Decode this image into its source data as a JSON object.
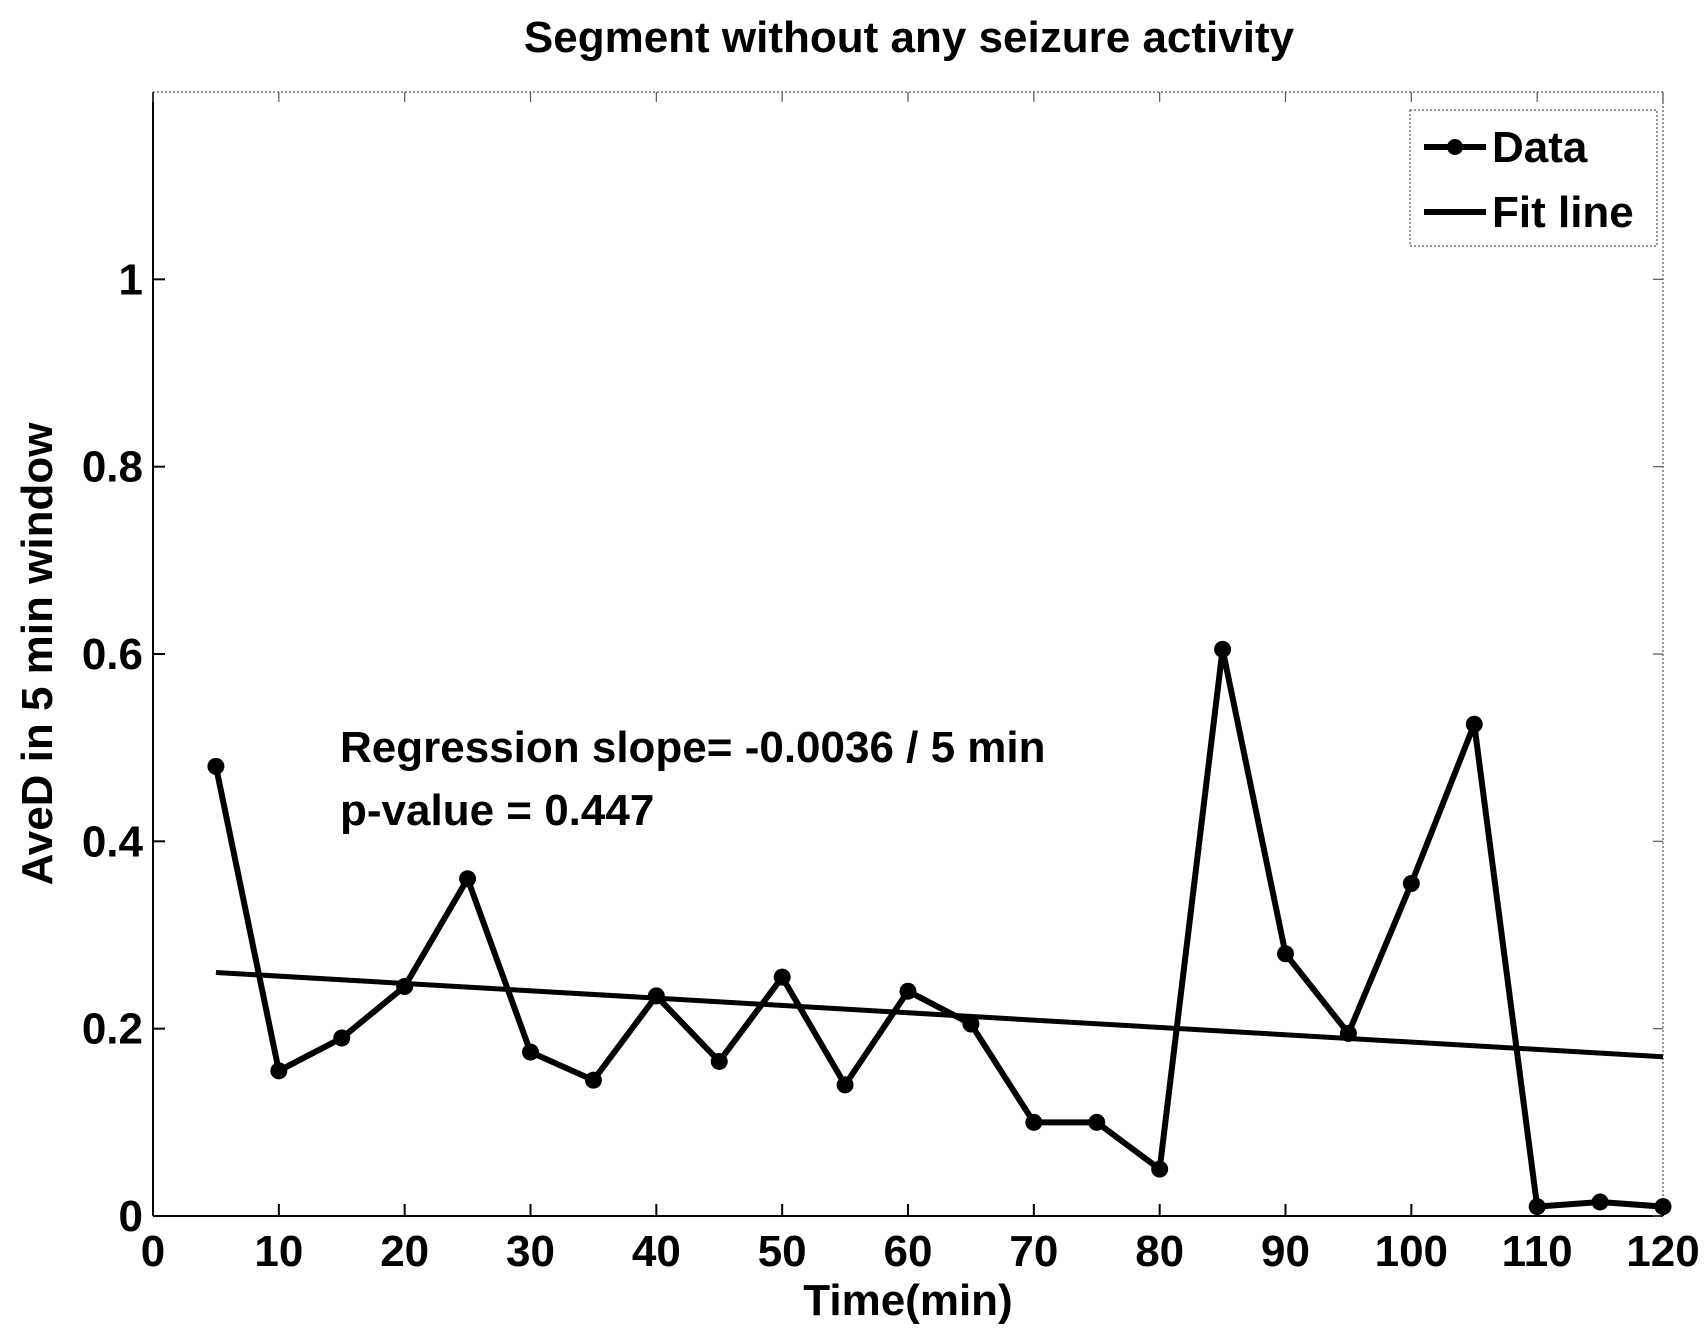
{
  "chart_data": {
    "type": "line",
    "title": "Segment without any seizure activity",
    "xlabel": "Time(min)",
    "ylabel": "AveD in 5 min window",
    "xlim": [
      0,
      120
    ],
    "ylim": [
      0,
      1.2
    ],
    "xticks": [
      0,
      10,
      20,
      30,
      40,
      50,
      60,
      70,
      80,
      90,
      100,
      110,
      120
    ],
    "yticks": [
      0,
      0.2,
      0.4,
      0.6,
      0.8,
      1
    ],
    "ytick_labels": [
      "0",
      "0.2",
      "0.4",
      "0.6",
      "0.8",
      "1"
    ],
    "grid": false,
    "legend": {
      "placement": "top-right",
      "entries": [
        "Data",
        "Fit line"
      ]
    },
    "series": [
      {
        "name": "Data",
        "style": "line-with-markers",
        "x": [
          5,
          10,
          15,
          20,
          25,
          30,
          35,
          40,
          45,
          50,
          55,
          60,
          65,
          70,
          75,
          80,
          85,
          90,
          95,
          100,
          105,
          110,
          115,
          120
        ],
        "y": [
          0.48,
          0.155,
          0.19,
          0.245,
          0.36,
          0.175,
          0.145,
          0.235,
          0.165,
          0.255,
          0.14,
          0.24,
          0.205,
          0.1,
          0.1,
          0.05,
          0.605,
          0.28,
          0.195,
          0.355,
          0.525,
          0.01,
          0.015,
          0.01
        ]
      },
      {
        "name": "Fit line",
        "style": "line",
        "x": [
          5,
          120
        ],
        "y": [
          0.26,
          0.17
        ]
      }
    ],
    "annotations": [
      "Regression slope= -0.0036 / 5 min",
      "p-value = 0.447"
    ]
  }
}
